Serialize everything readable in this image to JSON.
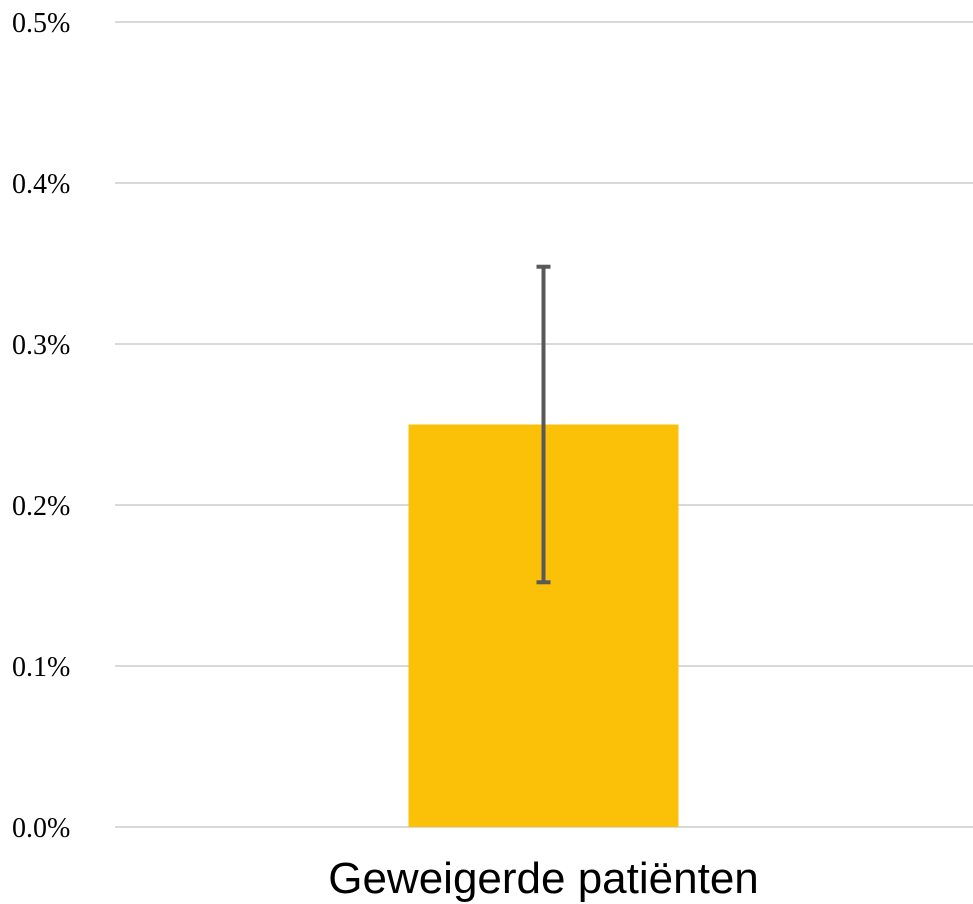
{
  "chart_data": {
    "type": "bar",
    "title": "",
    "xlabel": "",
    "ylabel": "",
    "categories": [
      "Geweigerde patiënten"
    ],
    "series": [
      {
        "values": [
          0.0025
        ],
        "error_bars": [
          {
            "low": 0.00152,
            "high": 0.00348
          }
        ],
        "color": "#FBC008"
      }
    ],
    "ylim": [
      0,
      0.005
    ],
    "y_ticks": [
      0,
      0.001,
      0.002,
      0.003,
      0.004,
      0.005
    ],
    "y_tick_labels": [
      "0.0%",
      "0.1%",
      "0.2%",
      "0.3%",
      "0.4%",
      "0.5%"
    ],
    "grid": true,
    "legend": "none",
    "colors": {
      "bar": "#FBC008",
      "error_bar": "#595959",
      "gridline": "#D9D9D9"
    }
  }
}
